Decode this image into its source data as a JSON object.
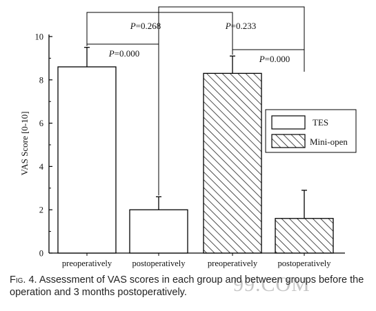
{
  "chart_data": {
    "type": "bar",
    "categories": [
      "preoperatively",
      "postoperatively",
      "preoperatively",
      "postoperatively"
    ],
    "groups": [
      "TES",
      "TES",
      "Mini-open",
      "Mini-open"
    ],
    "values": [
      8.6,
      2.0,
      8.3,
      1.6
    ],
    "errors": [
      0.9,
      0.6,
      0.8,
      1.3
    ],
    "ylabel": "VAS Score [0-10]",
    "ylim": [
      0,
      10
    ],
    "yticks": [
      "0",
      "2",
      "4",
      "6",
      "8",
      "10"
    ],
    "legend": {
      "placement": "right",
      "entries": [
        {
          "name": "TES",
          "pattern": "none"
        },
        {
          "name": "Mini-open",
          "pattern": "hatch"
        }
      ]
    },
    "comparisons": [
      {
        "from": 0,
        "to": 2,
        "p_prefix": "P",
        "p_value": "=0.268"
      },
      {
        "from": 1,
        "to": 3,
        "p_prefix": "P",
        "p_value": "=0.233"
      },
      {
        "from": 0,
        "to": 1,
        "p_prefix": "P",
        "p_value": "=0.000"
      },
      {
        "from": 2,
        "to": 3,
        "p_prefix": "P",
        "p_value": "=0.000"
      }
    ]
  },
  "caption": {
    "fig_label": "Fig. 4.",
    "text": "Assessment of VAS scores in each group and between groups before the operation and 3 months postoperatively."
  },
  "watermark": "99.COM"
}
